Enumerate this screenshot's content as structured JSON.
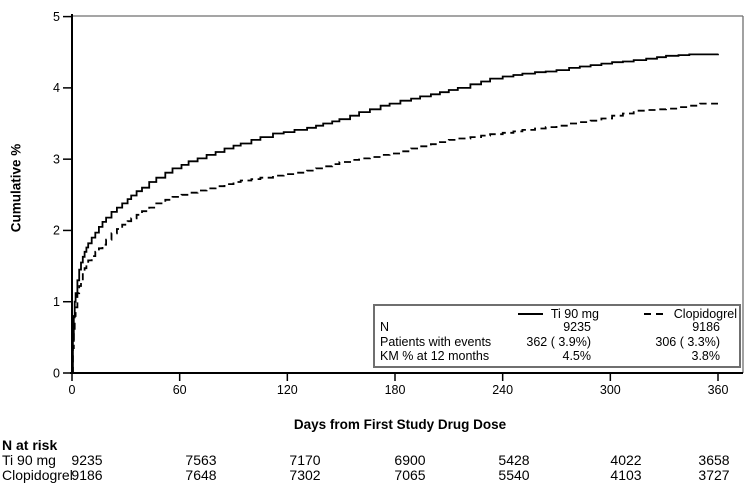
{
  "chart_data": {
    "type": "line",
    "title": "",
    "xlabel": "Days from First Study Drug Dose",
    "ylabel": "Cumulative %",
    "xlim": [
      0,
      360
    ],
    "ylim": [
      0,
      5
    ],
    "xticks": [
      "0",
      "60",
      "120",
      "180",
      "240",
      "300",
      "360"
    ],
    "yticks": [
      "0",
      "1",
      "2",
      "3",
      "4",
      "5"
    ],
    "grid": false,
    "legend_position": "inside bottom-right",
    "line_color": "#000000",
    "frame_color": "#6f6f6f",
    "series": [
      {
        "name": "Ti 90 mg",
        "style": "solid",
        "step": true,
        "points": [
          [
            0,
            0
          ],
          [
            0.5,
            0.45
          ],
          [
            1,
            0.8
          ],
          [
            1.5,
            1.0
          ],
          [
            2,
            1.12
          ],
          [
            3,
            1.3
          ],
          [
            4,
            1.45
          ],
          [
            5,
            1.55
          ],
          [
            6,
            1.63
          ],
          [
            7,
            1.7
          ],
          [
            8,
            1.76
          ],
          [
            9,
            1.82
          ],
          [
            11,
            1.9
          ],
          [
            13,
            1.97
          ],
          [
            15,
            2.05
          ],
          [
            17,
            2.12
          ],
          [
            19,
            2.18
          ],
          [
            22,
            2.26
          ],
          [
            25,
            2.32
          ],
          [
            28,
            2.38
          ],
          [
            31,
            2.44
          ],
          [
            33,
            2.49
          ],
          [
            36,
            2.55
          ],
          [
            39,
            2.6
          ],
          [
            43,
            2.68
          ],
          [
            47,
            2.74
          ],
          [
            52,
            2.81
          ],
          [
            56,
            2.87
          ],
          [
            61,
            2.92
          ],
          [
            65,
            2.97
          ],
          [
            70,
            3.01
          ],
          [
            75,
            3.06
          ],
          [
            80,
            3.1
          ],
          [
            85,
            3.15
          ],
          [
            90,
            3.19
          ],
          [
            94,
            3.22
          ],
          [
            100,
            3.27
          ],
          [
            105,
            3.31
          ],
          [
            112,
            3.36
          ],
          [
            118,
            3.38
          ],
          [
            124,
            3.41
          ],
          [
            131,
            3.44
          ],
          [
            136,
            3.47
          ],
          [
            140,
            3.5
          ],
          [
            145,
            3.53
          ],
          [
            149,
            3.56
          ],
          [
            155,
            3.61
          ],
          [
            160,
            3.66
          ],
          [
            166,
            3.7
          ],
          [
            172,
            3.75
          ],
          [
            177,
            3.78
          ],
          [
            183,
            3.82
          ],
          [
            189,
            3.85
          ],
          [
            194,
            3.88
          ],
          [
            200,
            3.91
          ],
          [
            205,
            3.94
          ],
          [
            210,
            3.97
          ],
          [
            215,
            4.0
          ],
          [
            222,
            4.05
          ],
          [
            228,
            4.09
          ],
          [
            233,
            4.13
          ],
          [
            240,
            4.16
          ],
          [
            246,
            4.18
          ],
          [
            251,
            4.2
          ],
          [
            258,
            4.22
          ],
          [
            264,
            4.23
          ],
          [
            270,
            4.25
          ],
          [
            277,
            4.28
          ],
          [
            283,
            4.3
          ],
          [
            289,
            4.32
          ],
          [
            295,
            4.34
          ],
          [
            301,
            4.36
          ],
          [
            307,
            4.37
          ],
          [
            313,
            4.39
          ],
          [
            320,
            4.41
          ],
          [
            326,
            4.43
          ],
          [
            331,
            4.45
          ],
          [
            338,
            4.46
          ],
          [
            344,
            4.47
          ],
          [
            360,
            4.48
          ]
        ]
      },
      {
        "name": "Clopidogrel",
        "style": "dashed",
        "step": true,
        "points": [
          [
            0,
            0
          ],
          [
            0.5,
            0.35
          ],
          [
            1,
            0.62
          ],
          [
            1.5,
            0.8
          ],
          [
            2,
            0.92
          ],
          [
            3,
            1.12
          ],
          [
            4,
            1.22
          ],
          [
            5,
            1.3
          ],
          [
            6,
            1.4
          ],
          [
            7,
            1.47
          ],
          [
            8,
            1.52
          ],
          [
            9,
            1.58
          ],
          [
            11,
            1.64
          ],
          [
            13,
            1.7
          ],
          [
            15,
            1.75
          ],
          [
            17,
            1.8
          ],
          [
            19,
            1.87
          ],
          [
            22,
            1.96
          ],
          [
            25,
            2.02
          ],
          [
            28,
            2.08
          ],
          [
            31,
            2.13
          ],
          [
            33,
            2.17
          ],
          [
            36,
            2.22
          ],
          [
            39,
            2.27
          ],
          [
            43,
            2.32
          ],
          [
            47,
            2.38
          ],
          [
            52,
            2.43
          ],
          [
            56,
            2.47
          ],
          [
            61,
            2.5
          ],
          [
            65,
            2.53
          ],
          [
            70,
            2.56
          ],
          [
            75,
            2.59
          ],
          [
            80,
            2.62
          ],
          [
            85,
            2.65
          ],
          [
            90,
            2.68
          ],
          [
            94,
            2.7
          ],
          [
            100,
            2.72
          ],
          [
            105,
            2.74
          ],
          [
            112,
            2.77
          ],
          [
            118,
            2.79
          ],
          [
            124,
            2.81
          ],
          [
            131,
            2.84
          ],
          [
            136,
            2.87
          ],
          [
            140,
            2.9
          ],
          [
            145,
            2.93
          ],
          [
            149,
            2.96
          ],
          [
            155,
            2.99
          ],
          [
            160,
            3.01
          ],
          [
            166,
            3.03
          ],
          [
            172,
            3.06
          ],
          [
            177,
            3.08
          ],
          [
            183,
            3.11
          ],
          [
            189,
            3.15
          ],
          [
            194,
            3.18
          ],
          [
            200,
            3.21
          ],
          [
            205,
            3.24
          ],
          [
            210,
            3.27
          ],
          [
            215,
            3.29
          ],
          [
            222,
            3.31
          ],
          [
            228,
            3.33
          ],
          [
            233,
            3.35
          ],
          [
            240,
            3.37
          ],
          [
            246,
            3.39
          ],
          [
            251,
            3.41
          ],
          [
            258,
            3.43
          ],
          [
            264,
            3.45
          ],
          [
            270,
            3.47
          ],
          [
            277,
            3.5
          ],
          [
            283,
            3.52
          ],
          [
            289,
            3.54
          ],
          [
            295,
            3.57
          ],
          [
            301,
            3.61
          ],
          [
            307,
            3.64
          ],
          [
            313,
            3.68
          ],
          [
            320,
            3.69
          ],
          [
            326,
            3.7
          ],
          [
            331,
            3.71
          ],
          [
            338,
            3.73
          ],
          [
            344,
            3.75
          ],
          [
            350,
            3.78
          ],
          [
            360,
            3.78
          ]
        ]
      }
    ]
  },
  "legend": {
    "entries": [
      {
        "label": "Ti 90 mg",
        "style": "solid"
      },
      {
        "label": "Clopidogrel",
        "style": "dashed"
      }
    ],
    "rows": [
      {
        "label": "N",
        "ti": "9235",
        "clo": "9186"
      },
      {
        "label": "Patients with events",
        "ti": "362 ( 3.9%)",
        "clo": "306 ( 3.3%)"
      },
      {
        "label": "KM % at 12 months",
        "ti": "4.5%",
        "clo": "3.8%"
      }
    ]
  },
  "risk_table": {
    "title": "N at risk",
    "rows": [
      {
        "label": "Ti 90 mg",
        "values": [
          "9235",
          "7563",
          "7170",
          "6900",
          "5428",
          "4022",
          "3658"
        ]
      },
      {
        "label": "Clopidogrel",
        "values": [
          "9186",
          "7648",
          "7302",
          "7065",
          "5540",
          "4103",
          "3727"
        ]
      }
    ]
  }
}
